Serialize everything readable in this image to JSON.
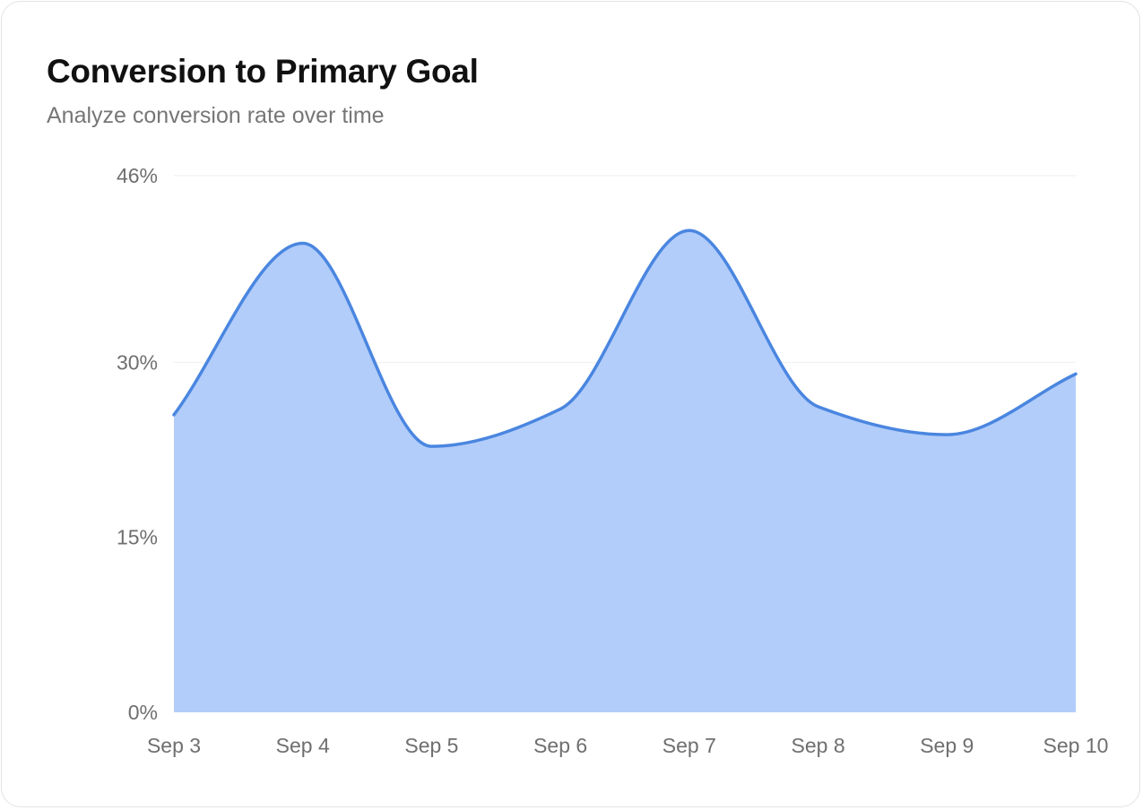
{
  "header": {
    "title": "Conversion to Primary Goal",
    "subtitle": "Analyze conversion rate over time"
  },
  "chart_data": {
    "type": "area",
    "title": "Conversion to Primary Goal",
    "subtitle": "Analyze conversion rate over time",
    "xlabel": "",
    "ylabel": "",
    "categories": [
      "Sep 3",
      "Sep 4",
      "Sep 5",
      "Sep 6",
      "Sep 7",
      "Sep 8",
      "Sep 9",
      "Sep 10"
    ],
    "series": [
      {
        "values": [
          25.5,
          40.2,
          22.8,
          26.0,
          41.3,
          26.2,
          23.8,
          29.0
        ],
        "color": "#4a86e0",
        "fill": "#b2cdfa"
      }
    ],
    "yticks": [
      0,
      15,
      30,
      46
    ],
    "ytick_labels": [
      "0%",
      "15%",
      "30%",
      "46%"
    ],
    "ylim": [
      0,
      46
    ],
    "grid": true,
    "legend": "none"
  }
}
